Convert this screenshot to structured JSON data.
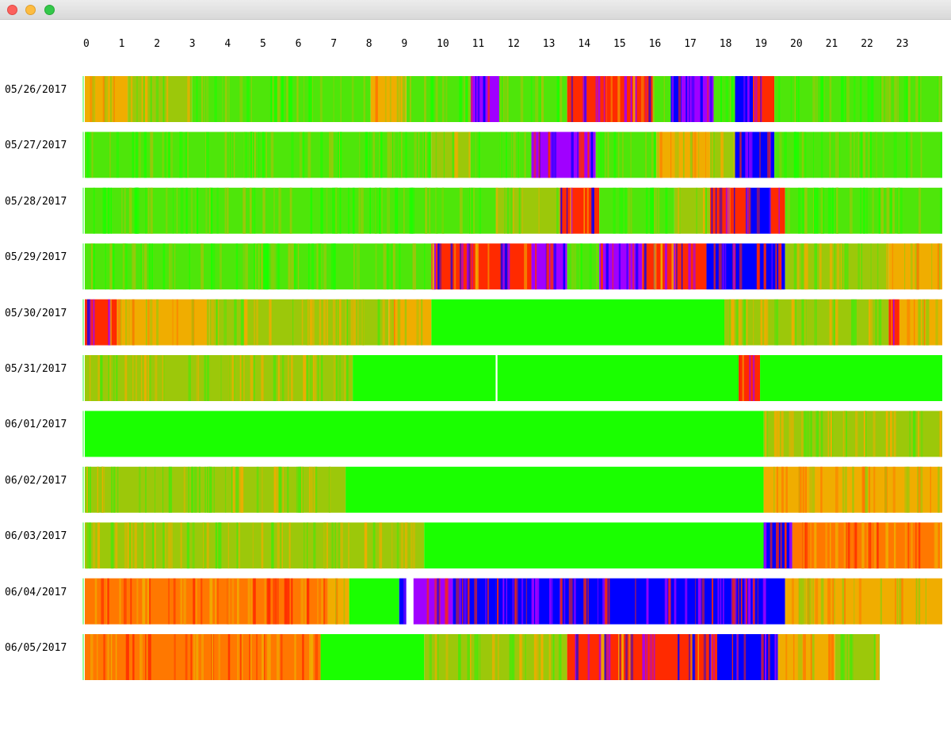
{
  "window": {
    "controls": [
      "close",
      "minimize",
      "zoom"
    ]
  },
  "chart_data": {
    "type": "heatmap",
    "title": "",
    "xlabel": "",
    "ylabel": "",
    "x_ticks": [
      "0",
      "1",
      "2",
      "3",
      "4",
      "5",
      "6",
      "7",
      "8",
      "9",
      "10",
      "11",
      "12",
      "13",
      "14",
      "15",
      "16",
      "17",
      "18",
      "19",
      "20",
      "21",
      "22",
      "23"
    ],
    "xlim": [
      0,
      24
    ],
    "grid": false,
    "legend": "none",
    "colors": {
      "green": "#1aff00",
      "lime": "#4ee60a",
      "olive": "#9cc80a",
      "amber": "#f0ad00",
      "orange": "#ff7800",
      "red": "#ff2a00",
      "purple": "#a000ff",
      "blue": "#0000ff",
      "gap": "#ffffff"
    },
    "rows": [
      {
        "date": "05/26/2017",
        "end_hour": 24,
        "segments": [
          [
            0,
            1.2,
            "amber"
          ],
          [
            1.2,
            3.0,
            "olive"
          ],
          [
            3.0,
            8.0,
            "lime"
          ],
          [
            8.0,
            9.0,
            "amber"
          ],
          [
            9.0,
            10.8,
            "lime"
          ],
          [
            10.8,
            11.6,
            "purple"
          ],
          [
            11.6,
            13.5,
            "lime"
          ],
          [
            13.5,
            14.6,
            "red"
          ],
          [
            14.6,
            15.9,
            "red"
          ],
          [
            15.9,
            16.4,
            "lime"
          ],
          [
            16.4,
            16.7,
            "blue"
          ],
          [
            16.7,
            17.6,
            "purple"
          ],
          [
            17.6,
            18.2,
            "lime"
          ],
          [
            18.2,
            18.7,
            "blue"
          ],
          [
            18.7,
            19.3,
            "red"
          ],
          [
            19.3,
            24,
            "lime"
          ]
        ]
      },
      {
        "date": "05/27/2017",
        "end_hour": 24,
        "segments": [
          [
            0,
            9.7,
            "lime"
          ],
          [
            9.7,
            10.8,
            "olive"
          ],
          [
            10.8,
            12.5,
            "lime"
          ],
          [
            12.5,
            14.3,
            "purple"
          ],
          [
            14.3,
            16.0,
            "lime"
          ],
          [
            16.0,
            17.5,
            "amber"
          ],
          [
            17.5,
            18.2,
            "olive"
          ],
          [
            18.2,
            19.3,
            "blue"
          ],
          [
            19.3,
            24,
            "lime"
          ]
        ]
      },
      {
        "date": "05/28/2017",
        "end_hour": 24,
        "segments": [
          [
            0,
            11.5,
            "lime"
          ],
          [
            11.5,
            13.3,
            "olive"
          ],
          [
            13.3,
            14.4,
            "red"
          ],
          [
            14.4,
            16.5,
            "lime"
          ],
          [
            16.5,
            17.5,
            "olive"
          ],
          [
            17.5,
            18.5,
            "red"
          ],
          [
            18.5,
            19.2,
            "blue"
          ],
          [
            19.2,
            19.6,
            "red"
          ],
          [
            19.6,
            24,
            "lime"
          ]
        ]
      },
      {
        "date": "05/29/2017",
        "end_hour": 24,
        "segments": [
          [
            0,
            9.7,
            "lime"
          ],
          [
            9.7,
            12.5,
            "red"
          ],
          [
            12.5,
            13.5,
            "purple"
          ],
          [
            13.5,
            14.4,
            "lime"
          ],
          [
            14.4,
            15.6,
            "purple"
          ],
          [
            15.6,
            17.4,
            "red"
          ],
          [
            17.4,
            18.0,
            "blue"
          ],
          [
            18.0,
            19.6,
            "blue"
          ],
          [
            19.6,
            22.5,
            "olive"
          ],
          [
            22.5,
            24,
            "amber"
          ]
        ]
      },
      {
        "date": "05/30/2017",
        "end_hour": 24,
        "segments": [
          [
            0,
            0.9,
            "red"
          ],
          [
            0.9,
            3.5,
            "amber"
          ],
          [
            3.5,
            8.5,
            "olive"
          ],
          [
            8.5,
            9.7,
            "amber"
          ],
          [
            9.7,
            17.9,
            "green"
          ],
          [
            17.9,
            22.5,
            "olive"
          ],
          [
            22.5,
            22.8,
            "red"
          ],
          [
            22.8,
            24,
            "amber"
          ]
        ]
      },
      {
        "date": "05/31/2017",
        "end_hour": 24,
        "segments": [
          [
            0,
            7.5,
            "olive"
          ],
          [
            7.5,
            11.5,
            "green"
          ],
          [
            11.5,
            11.55,
            "gap"
          ],
          [
            11.55,
            18.3,
            "green"
          ],
          [
            18.3,
            18.9,
            "red"
          ],
          [
            18.9,
            24,
            "green"
          ]
        ]
      },
      {
        "date": "06/01/2017",
        "end_hour": 24,
        "segments": [
          [
            0,
            19.0,
            "green"
          ],
          [
            19.0,
            24,
            "olive"
          ]
        ]
      },
      {
        "date": "06/02/2017",
        "end_hour": 24,
        "segments": [
          [
            0,
            7.3,
            "olive"
          ],
          [
            7.3,
            19.0,
            "green"
          ],
          [
            19.0,
            24,
            "amber"
          ]
        ]
      },
      {
        "date": "06/03/2017",
        "end_hour": 24,
        "segments": [
          [
            0,
            9.5,
            "olive"
          ],
          [
            9.5,
            19.0,
            "green"
          ],
          [
            19.0,
            19.8,
            "blue"
          ],
          [
            19.8,
            24,
            "orange"
          ]
        ]
      },
      {
        "date": "06/04/2017",
        "end_hour": 24,
        "segments": [
          [
            0,
            6.8,
            "orange"
          ],
          [
            6.8,
            7.4,
            "amber"
          ],
          [
            7.4,
            8.8,
            "green"
          ],
          [
            8.8,
            9.0,
            "blue"
          ],
          [
            9.0,
            9.2,
            "gap"
          ],
          [
            9.2,
            10.3,
            "purple"
          ],
          [
            10.3,
            11.5,
            "blue"
          ],
          [
            11.5,
            19.6,
            "blue"
          ],
          [
            19.6,
            24,
            "amber"
          ]
        ]
      },
      {
        "date": "06/05/2017",
        "end_hour": 22.25,
        "segments": [
          [
            0,
            6.6,
            "orange"
          ],
          [
            6.6,
            9.5,
            "green"
          ],
          [
            9.5,
            13.5,
            "olive"
          ],
          [
            13.5,
            17.7,
            "red"
          ],
          [
            17.7,
            19.4,
            "blue"
          ],
          [
            19.4,
            21.0,
            "amber"
          ],
          [
            21.0,
            22.25,
            "olive"
          ]
        ]
      }
    ]
  }
}
